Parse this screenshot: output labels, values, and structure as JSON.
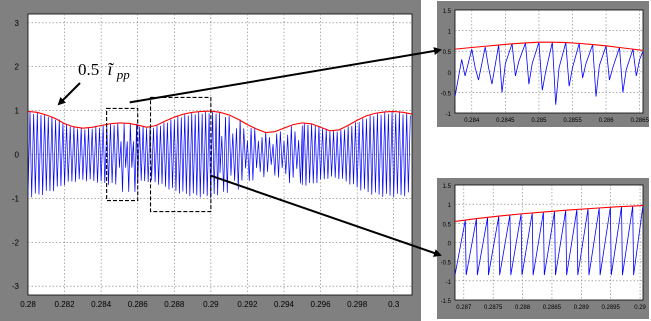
{
  "colors": {
    "frame": "#808080",
    "axes_bg": "#ffffff",
    "grid": "#7a7a7a",
    "envelope": "#ff0000",
    "current": "#0000ff",
    "dashed_box": "#000000"
  },
  "annotation": {
    "coefficient": "0.5",
    "symbol": "ĩ",
    "subscript": "pp"
  },
  "chart_data": [
    {
      "id": "main",
      "type": "line",
      "title": "",
      "xlabel": "",
      "ylabel": "",
      "xlim": [
        0.28,
        0.301
      ],
      "ylim": [
        -3.2,
        3.2
      ],
      "grid": true,
      "x_ticks": [
        "0.28",
        "0.282",
        "0.284",
        "0.286",
        "0.288",
        "0.29",
        "0.292",
        "0.294",
        "0.296",
        "0.298",
        "0.3"
      ],
      "y_ticks": [
        "3",
        "2",
        "1",
        "0",
        "-1",
        "-2",
        "-3"
      ],
      "x_tick_values": [
        0.28,
        0.282,
        0.284,
        0.286,
        0.288,
        0.29,
        0.292,
        0.294,
        0.296,
        0.298,
        0.3
      ],
      "y_tick_values": [
        3,
        2,
        1,
        0,
        -1,
        -2,
        -3
      ],
      "series": [
        {
          "role": "envelope",
          "x": [
            0.28,
            0.2805,
            0.281,
            0.2815,
            0.282,
            0.2825,
            0.283,
            0.2835,
            0.284,
            0.2845,
            0.285,
            0.2855,
            0.286,
            0.2865,
            0.287,
            0.2875,
            0.288,
            0.2885,
            0.289,
            0.2895,
            0.29,
            0.2905,
            0.291,
            0.2915,
            0.292,
            0.2925,
            0.293,
            0.2935,
            0.294,
            0.2945,
            0.295,
            0.2955,
            0.296,
            0.2965,
            0.297,
            0.2975,
            0.298,
            0.2985,
            0.299,
            0.2995,
            0.3,
            0.3005,
            0.301
          ],
          "y": [
            0.98,
            0.96,
            0.9,
            0.82,
            0.7,
            0.63,
            0.6,
            0.62,
            0.66,
            0.7,
            0.72,
            0.71,
            0.67,
            0.62,
            0.66,
            0.76,
            0.85,
            0.92,
            0.96,
            0.98,
            0.99,
            0.96,
            0.9,
            0.8,
            0.68,
            0.58,
            0.5,
            0.52,
            0.6,
            0.68,
            0.72,
            0.7,
            0.62,
            0.54,
            0.56,
            0.66,
            0.78,
            0.88,
            0.94,
            0.97,
            0.98,
            0.96,
            0.92
          ]
        },
        {
          "role": "current",
          "modulation": [
            {
              "start": 0.28,
              "end": 0.285,
              "type": "ramp",
              "amplitude": 1.0,
              "step_x": 0.0002
            },
            {
              "start": 0.285,
              "end": 0.286,
              "type": "spike",
              "amplitude": 0.7,
              "step_x": 0.00017
            },
            {
              "start": 0.286,
              "end": 0.2905,
              "type": "ramp",
              "amplitude": 0.99,
              "step_x": 0.00019
            },
            {
              "start": 0.2905,
              "end": 0.295,
              "type": "mixed",
              "amplitude": 0.7,
              "step_x": 0.0002
            },
            {
              "start": 0.295,
              "end": 0.301,
              "type": "ramp",
              "amplitude": 0.98,
              "step_x": 0.0002
            }
          ]
        }
      ],
      "highlight_boxes": [
        {
          "x": [
            0.2843,
            0.286
          ],
          "y": [
            -1.05,
            1.05
          ]
        },
        {
          "x": [
            0.2867,
            0.29
          ],
          "y": [
            -1.3,
            1.3
          ]
        }
      ]
    },
    {
      "id": "zoom-top",
      "type": "line",
      "title": "",
      "xlabel": "",
      "ylabel": "",
      "xlim": [
        0.28375,
        0.28655
      ],
      "ylim": [
        -1.0,
        1.5
      ],
      "grid": true,
      "x_ticks": [
        "0.284",
        "0.2845",
        "0.285",
        "0.2855",
        "0.286",
        "0.2865"
      ],
      "y_ticks": [
        "1.5",
        "1",
        "0.5",
        "0",
        "-0.5",
        "-1"
      ],
      "x_tick_values": [
        0.284,
        0.2845,
        0.285,
        0.2855,
        0.286,
        0.2865
      ],
      "y_tick_values": [
        1.5,
        1,
        0.5,
        0,
        -0.5,
        -1
      ],
      "series": [
        {
          "role": "envelope",
          "x": [
            0.28375,
            0.284,
            0.2842,
            0.2844,
            0.2846,
            0.2848,
            0.285,
            0.2852,
            0.2854,
            0.2856,
            0.2858,
            0.286,
            0.2862,
            0.2864,
            0.28655
          ],
          "y": [
            0.55,
            0.59,
            0.62,
            0.65,
            0.68,
            0.7,
            0.72,
            0.72,
            0.71,
            0.69,
            0.66,
            0.63,
            0.59,
            0.55,
            0.52
          ]
        },
        {
          "role": "current",
          "x": [
            0.28375,
            0.28385,
            0.2839,
            0.284,
            0.28405,
            0.2841,
            0.2842,
            0.28425,
            0.2843,
            0.2844,
            0.28445,
            0.2845,
            0.2846,
            0.28465,
            0.2847,
            0.2848,
            0.28485,
            0.2849,
            0.285,
            0.28505,
            0.2851,
            0.2852,
            0.28525,
            0.2853,
            0.2854,
            0.28545,
            0.2855,
            0.2856,
            0.28565,
            0.2857,
            0.2858,
            0.28585,
            0.2859,
            0.286,
            0.28605,
            0.2861,
            0.2862,
            0.28625,
            0.2863,
            0.2864,
            0.28645,
            0.2865,
            0.28655
          ],
          "y": [
            -0.6,
            0.3,
            -0.1,
            0.55,
            0.1,
            -0.2,
            0.6,
            0.1,
            -0.3,
            0.65,
            -0.5,
            0.2,
            0.68,
            -0.1,
            0.25,
            0.7,
            -0.3,
            0.2,
            0.72,
            -0.45,
            0.0,
            0.72,
            -0.8,
            0.1,
            0.71,
            -0.35,
            0.1,
            0.69,
            -0.15,
            0.2,
            0.66,
            -0.6,
            0.15,
            0.63,
            -0.2,
            0.1,
            0.59,
            -0.5,
            0.05,
            0.55,
            -0.1,
            0.3,
            0.5
          ]
        }
      ]
    },
    {
      "id": "zoom-bottom",
      "type": "line",
      "title": "",
      "xlabel": "",
      "ylabel": "",
      "xlim": [
        0.28685,
        0.29005
      ],
      "ylim": [
        -1.5,
        1.5
      ],
      "grid": true,
      "x_ticks": [
        "0.287",
        "0.2875",
        "0.288",
        "0.2885",
        "0.289",
        "0.2895",
        "0.29"
      ],
      "y_ticks": [
        "1.5",
        "1",
        "0.5",
        "0",
        "-0.5",
        "-1",
        "-1.5"
      ],
      "x_tick_values": [
        0.287,
        0.2875,
        0.288,
        0.2885,
        0.289,
        0.2895,
        0.29
      ],
      "y_tick_values": [
        1.5,
        1,
        0.5,
        0,
        -0.5,
        -1,
        -1.5
      ],
      "series": [
        {
          "role": "envelope",
          "x": [
            0.28685,
            0.2872,
            0.2876,
            0.288,
            0.2884,
            0.2888,
            0.2892,
            0.2896,
            0.29,
            0.29005
          ],
          "y": [
            0.55,
            0.62,
            0.69,
            0.75,
            0.8,
            0.85,
            0.89,
            0.93,
            0.96,
            0.97
          ]
        },
        {
          "role": "current",
          "sawtooth": {
            "start": 0.28685,
            "end": 0.29005,
            "period": 0.00019,
            "trough": -0.85
          }
        }
      ]
    }
  ]
}
